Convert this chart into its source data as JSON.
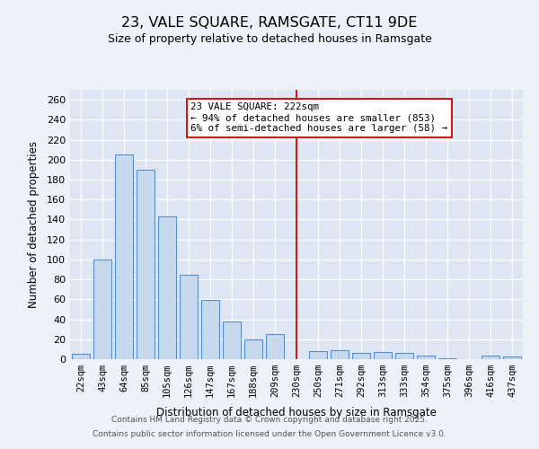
{
  "title": "23, VALE SQUARE, RAMSGATE, CT11 9DE",
  "subtitle": "Size of property relative to detached houses in Ramsgate",
  "xlabel": "Distribution of detached houses by size in Ramsgate",
  "ylabel": "Number of detached properties",
  "categories": [
    "22sqm",
    "43sqm",
    "64sqm",
    "85sqm",
    "105sqm",
    "126sqm",
    "147sqm",
    "167sqm",
    "188sqm",
    "209sqm",
    "230sqm",
    "250sqm",
    "271sqm",
    "292sqm",
    "313sqm",
    "333sqm",
    "354sqm",
    "375sqm",
    "396sqm",
    "416sqm",
    "437sqm"
  ],
  "values": [
    5,
    100,
    205,
    190,
    143,
    85,
    59,
    38,
    20,
    25,
    0,
    8,
    9,
    6,
    7,
    6,
    4,
    1,
    0,
    4,
    3
  ],
  "bar_color": "#c8d9ed",
  "bar_edge_color": "#5b8fc9",
  "background_color": "#dde6f2",
  "grid_color": "#ffffff",
  "red_line_x": 10.0,
  "annotation_text": "23 VALE SQUARE: 222sqm\n← 94% of detached houses are smaller (853)\n6% of semi-detached houses are larger (58) →",
  "annotation_box_color": "#ffffff",
  "annotation_box_edge_color": "#cc0000",
  "ylim": [
    0,
    270
  ],
  "yticks": [
    0,
    20,
    40,
    60,
    80,
    100,
    120,
    140,
    160,
    180,
    200,
    220,
    240,
    260
  ],
  "footer1": "Contains HM Land Registry data © Crown copyright and database right 2025.",
  "footer2": "Contains public sector information licensed under the Open Government Licence v3.0."
}
